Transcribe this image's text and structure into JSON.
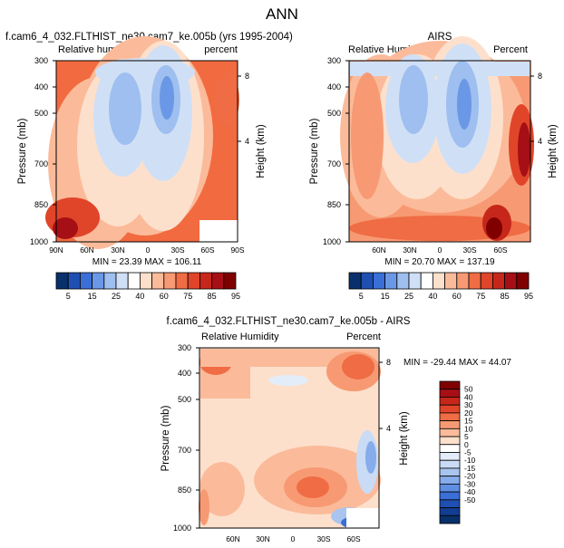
{
  "title": "ANN",
  "colors": {
    "abs_scale": [
      "#08306b",
      "#1f4fb0",
      "#3a6fd8",
      "#6b98e6",
      "#9ebfef",
      "#cfe0f6",
      "#ffffff",
      "#fde0cc",
      "#fbbb9a",
      "#f79a73",
      "#ef6c44",
      "#e0452a",
      "#c7271a",
      "#a50f15",
      "#800000"
    ],
    "diff_scale": [
      "#800000",
      "#a50f15",
      "#c7271a",
      "#e0452a",
      "#ef6c44",
      "#f79a73",
      "#fbbb9a",
      "#fde0cc",
      "#ffffff",
      "#e3edfa",
      "#c9dbf5",
      "#a9c5ef",
      "#86aceb",
      "#5e8fe3",
      "#3a6fd8",
      "#1f4fb0",
      "#123d92",
      "#08306b"
    ]
  },
  "chart_data": [
    {
      "type": "heatmap",
      "panel": "model",
      "title": "f.cam6_4_032.FLTHIST_ne30.cam7_ke.005b (yrs 1995-2004)",
      "left_label": "Relative humidity",
      "right_label": "percent",
      "ylabel": "Pressure (mb)",
      "ylabel_right": "Height (km)",
      "y_ticks": [
        "300",
        "400",
        "500",
        "700",
        "850",
        "1000"
      ],
      "y_ticks_right": [
        "8",
        "4"
      ],
      "x_ticks": [
        "90N",
        "60N",
        "30N",
        "0",
        "30S",
        "60S",
        "90S"
      ],
      "min_max": "MIN =  23.39   MAX = 106.11"
    },
    {
      "type": "heatmap",
      "panel": "obs",
      "title": "AIRS",
      "left_label": "Relative Humidity",
      "right_label": "Percent",
      "ylabel": "Pressure (mb)",
      "ylabel_right": "Height (km)",
      "y_ticks": [
        "300",
        "400",
        "500",
        "700",
        "850",
        "1000"
      ],
      "y_ticks_right": [
        "8",
        "4"
      ],
      "x_ticks": [
        "60N",
        "30N",
        "0",
        "30S",
        "60S"
      ],
      "min_max": "MIN =  20.70   MAX = 137.19"
    },
    {
      "type": "heatmap",
      "panel": "difference",
      "title": "f.cam6_4_032.FLTHIST_ne30.cam7_ke.005b - AIRS",
      "left_label": "Relative Humidity",
      "right_label": "Percent",
      "ylabel": "Pressure (mb)",
      "ylabel_right": "Height (km)",
      "y_ticks": [
        "300",
        "400",
        "500",
        "700",
        "850",
        "1000"
      ],
      "y_ticks_right": [
        "8",
        "4"
      ],
      "x_ticks": [
        "60N",
        "30N",
        "0",
        "30S",
        "60S"
      ],
      "min_max": "MIN = -29.44   MAX =  44.07"
    }
  ],
  "legend_abs": {
    "labels": [
      "5",
      "15",
      "25",
      "40",
      "60",
      "75",
      "85",
      "95"
    ]
  },
  "legend_diff": {
    "labels": [
      "50",
      "40",
      "30",
      "20",
      "15",
      "10",
      "5",
      "0",
      "-5",
      "-10",
      "-15",
      "-20",
      "-30",
      "-40",
      "-50"
    ]
  }
}
